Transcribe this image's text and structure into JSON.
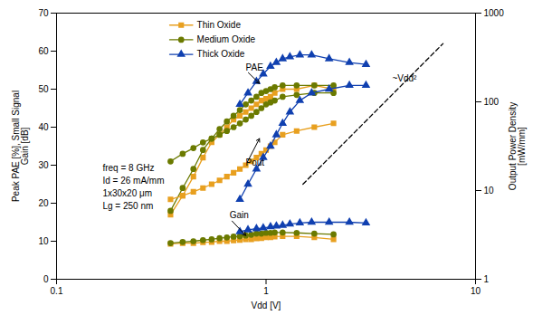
{
  "chart_data": {
    "type": "line",
    "log": "x",
    "grid": false,
    "legend": "upper left",
    "xlabel": "Vdd [V]",
    "ylabel": "Peak PAE [%], Small Signal\nGain [dB]",
    "y2label": "Output Power Density\n[mW/mm]",
    "xlim": [
      0.1,
      10.0
    ],
    "xticks": [
      0.1,
      1,
      10
    ],
    "ylim": [
      0,
      70
    ],
    "yticks": [
      0,
      10,
      20,
      30,
      40,
      50,
      60,
      70
    ],
    "y2lim": [
      1,
      1000
    ],
    "y2ticks": [
      1,
      10,
      100,
      1000
    ],
    "series": [
      {
        "name": "Thin Oxide",
        "color": "#E8A020",
        "marker": "square",
        "line_style": "solid",
        "x": [
          0.35,
          0.4,
          0.45,
          0.5,
          0.55,
          0.6,
          0.65,
          0.7,
          0.75,
          0.8,
          0.85,
          0.9,
          0.95,
          1.0,
          1.05,
          1.1,
          1.2,
          1.4,
          1.7,
          2.1
        ],
        "values": [
          17,
          22,
          27,
          32,
          36,
          38,
          40,
          42,
          43,
          44,
          45,
          46,
          47,
          47.5,
          48,
          49,
          50,
          50,
          51,
          50
        ]
      },
      {
        "name": "Medium Oxide",
        "color": "#6B7A00",
        "marker": "circle",
        "line_style": "solid",
        "x": [
          0.35,
          0.4,
          0.45,
          0.5,
          0.55,
          0.6,
          0.65,
          0.7,
          0.75,
          0.8,
          0.85,
          0.9,
          0.95,
          1.0,
          1.05,
          1.1,
          1.2,
          1.4,
          1.7,
          2.1
        ],
        "values": [
          18,
          24,
          29,
          34,
          37,
          39.5,
          41.5,
          43,
          44.5,
          46,
          47,
          48,
          49,
          49.5,
          50,
          50.5,
          51,
          51,
          51,
          51
        ]
      },
      {
        "name": "Thick Oxide",
        "color": "#1040B0",
        "marker": "triangle",
        "line_style": "solid",
        "x": [
          0.75,
          0.82,
          0.9,
          0.97,
          1.05,
          1.12,
          1.2,
          1.3,
          1.45,
          1.65,
          2.0,
          2.5,
          3.0
        ],
        "values": [
          46,
          49,
          52,
          54,
          56,
          57,
          58,
          58.5,
          59,
          59,
          58,
          57,
          56.5
        ]
      },
      {
        "color": "#E8A020",
        "marker": "square",
        "line_style": "solid",
        "x": [
          0.35,
          0.4,
          0.45,
          0.5,
          0.55,
          0.6,
          0.65,
          0.7,
          0.75,
          0.8,
          0.85,
          0.9,
          0.95,
          1.0,
          1.05,
          1.1,
          1.2,
          1.4,
          1.7,
          2.1
        ],
        "values": [
          21,
          22,
          23,
          24,
          25,
          26,
          27,
          28,
          29,
          30,
          31,
          32,
          33,
          34,
          35,
          36,
          38,
          39,
          40,
          41
        ]
      },
      {
        "color": "#6B7A00",
        "marker": "circle",
        "line_style": "solid",
        "x": [
          0.35,
          0.4,
          0.45,
          0.5,
          0.55,
          0.6,
          0.65,
          0.7,
          0.75,
          0.8,
          0.85,
          0.9,
          0.95,
          1.0,
          1.05,
          1.1,
          1.2,
          1.4,
          1.7,
          2.1
        ],
        "values": [
          31,
          33,
          34.5,
          36,
          37,
          38,
          39,
          40,
          41,
          42,
          43,
          44,
          45,
          46,
          46.5,
          47,
          48,
          48.5,
          49,
          49
        ]
      },
      {
        "color": "#1040B0",
        "marker": "triangle",
        "line_style": "solid",
        "x": [
          0.75,
          0.82,
          0.9,
          0.97,
          1.05,
          1.12,
          1.2,
          1.3,
          1.45,
          1.65,
          2.0,
          2.5,
          3.0
        ],
        "values": [
          21,
          25,
          29,
          32,
          35,
          38,
          41,
          44,
          47,
          49,
          50,
          51,
          51
        ]
      },
      {
        "color": "#E8A020",
        "marker": "square",
        "line_style": "solid",
        "x": [
          0.35,
          0.4,
          0.45,
          0.5,
          0.55,
          0.6,
          0.65,
          0.7,
          0.75,
          0.8,
          0.85,
          0.9,
          0.95,
          1.0,
          1.05,
          1.1,
          1.2,
          1.4,
          1.7,
          2.1
        ],
        "values": [
          9.3,
          9.5,
          9.5,
          9.7,
          9.8,
          10.0,
          10.0,
          10.2,
          10.3,
          10.5,
          10.5,
          10.7,
          10.8,
          11.0,
          11.0,
          11.2,
          11.3,
          11.3,
          11.0,
          10.5
        ]
      },
      {
        "color": "#6B7A00",
        "marker": "circle",
        "line_style": "solid",
        "x": [
          0.35,
          0.4,
          0.45,
          0.5,
          0.55,
          0.6,
          0.65,
          0.7,
          0.75,
          0.8,
          0.85,
          0.9,
          0.95,
          1.0,
          1.05,
          1.1,
          1.2,
          1.4,
          1.7,
          2.1
        ],
        "values": [
          9.5,
          9.8,
          10.0,
          10.3,
          10.5,
          10.8,
          11.0,
          11.2,
          11.3,
          11.5,
          11.7,
          12.0,
          12.0,
          12.2,
          12.2,
          12.3,
          12.3,
          12.2,
          12.0,
          11.8
        ]
      },
      {
        "color": "#1040B0",
        "marker": "triangle",
        "line_style": "solid",
        "x": [
          0.75,
          0.82,
          0.9,
          0.97,
          1.05,
          1.12,
          1.2,
          1.3,
          1.45,
          1.65,
          2.0,
          2.5,
          3.0
        ],
        "values": [
          12.5,
          13.0,
          13.3,
          13.5,
          13.8,
          14.0,
          14.2,
          14.5,
          14.8,
          15.0,
          15.0,
          15.0,
          14.8
        ]
      },
      {
        "color": "black",
        "line_style": "dashed",
        "x": [
          1.5,
          7.0
        ],
        "values": [
          25,
          62
        ]
      }
    ],
    "annotations": [
      {
        "text": "~Vdd²",
        "x": 4.0,
        "y": 52
      },
      {
        "text": "PAE",
        "x": 0.8,
        "y": 55,
        "arrow_to": [
          0.93,
          51.5
        ]
      },
      {
        "text": "Pout",
        "x": 0.8,
        "y": 30,
        "arrow_to": [
          0.93,
          37
        ]
      },
      {
        "text": "Gain",
        "x": 0.67,
        "y": 16,
        "arrow_to": [
          0.8,
          11.5
        ]
      },
      {
        "text": "freq = 8 GHz\nId = 26 mA/mm\n1x30x20 μm\nLg = 250 nm"
      }
    ]
  }
}
